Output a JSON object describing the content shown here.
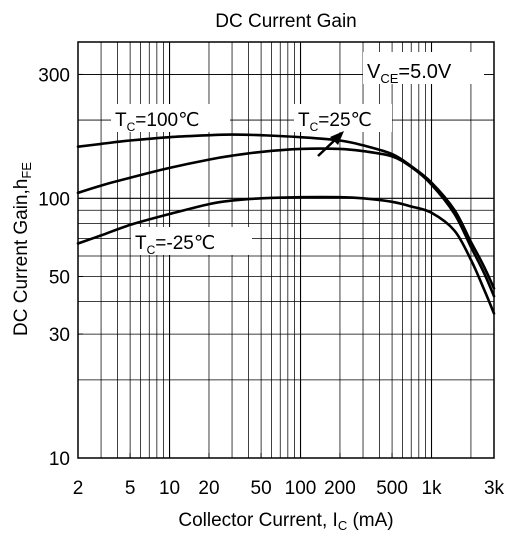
{
  "chart_data": {
    "type": "line",
    "title": "DC Current Gain",
    "xlabel": {
      "main": "Collector Current, I",
      "sub": "C",
      "unit": " (mA)"
    },
    "ylabel": {
      "main": "DC Current Gain,h",
      "sub": "FE"
    },
    "x_scale": "log",
    "y_scale": "log",
    "xlim": [
      2,
      3000
    ],
    "ylim": [
      10,
      400
    ],
    "grid": true,
    "x_ticks": [
      {
        "value": 2,
        "label": "2"
      },
      {
        "value": 5,
        "label": "5"
      },
      {
        "value": 10,
        "label": "10"
      },
      {
        "value": 20,
        "label": "20"
      },
      {
        "value": 50,
        "label": "50"
      },
      {
        "value": 100,
        "label": "100"
      },
      {
        "value": 200,
        "label": "200"
      },
      {
        "value": 500,
        "label": "500"
      },
      {
        "value": 1000,
        "label": "1k"
      },
      {
        "value": 3000,
        "label": "3k"
      }
    ],
    "y_ticks": [
      {
        "value": 10,
        "label": "10"
      },
      {
        "value": 30,
        "label": "30"
      },
      {
        "value": 50,
        "label": "50"
      },
      {
        "value": 100,
        "label": "100"
      },
      {
        "value": 300,
        "label": "300"
      }
    ],
    "annotations": [
      {
        "pre": "V",
        "sub": "CE",
        "post": "=5.0V"
      },
      {
        "pre": "T",
        "sub": "C",
        "post": "=100℃"
      },
      {
        "pre": "T",
        "sub": "C",
        "post": "=25℃"
      },
      {
        "pre": "T",
        "sub": "C",
        "post": "=-25℃"
      }
    ],
    "series": [
      {
        "x": [
          2,
          3,
          5,
          10,
          20,
          30,
          50,
          100,
          200,
          300,
          500,
          700,
          1000,
          1500,
          2000,
          2500,
          3000
        ],
        "values": [
          158,
          162,
          167,
          172,
          175,
          176,
          175,
          172,
          167,
          160,
          148,
          133,
          115,
          90,
          68,
          55,
          45
        ]
      },
      {
        "x": [
          2,
          3,
          5,
          10,
          20,
          30,
          50,
          100,
          200,
          300,
          500,
          700,
          1000,
          1500,
          2000,
          2500,
          3000
        ],
        "values": [
          105,
          112,
          120,
          131,
          141,
          146,
          151,
          155,
          155,
          152,
          145,
          132,
          113,
          87,
          65,
          52,
          42
        ]
      },
      {
        "x": [
          2,
          3,
          5,
          10,
          20,
          30,
          50,
          100,
          200,
          300,
          500,
          700,
          1000,
          1500,
          2000,
          2500,
          3000
        ],
        "values": [
          67,
          72,
          79,
          87,
          95,
          98,
          100,
          101,
          101,
          100,
          97,
          93,
          88,
          75,
          58,
          45,
          36
        ]
      }
    ]
  }
}
